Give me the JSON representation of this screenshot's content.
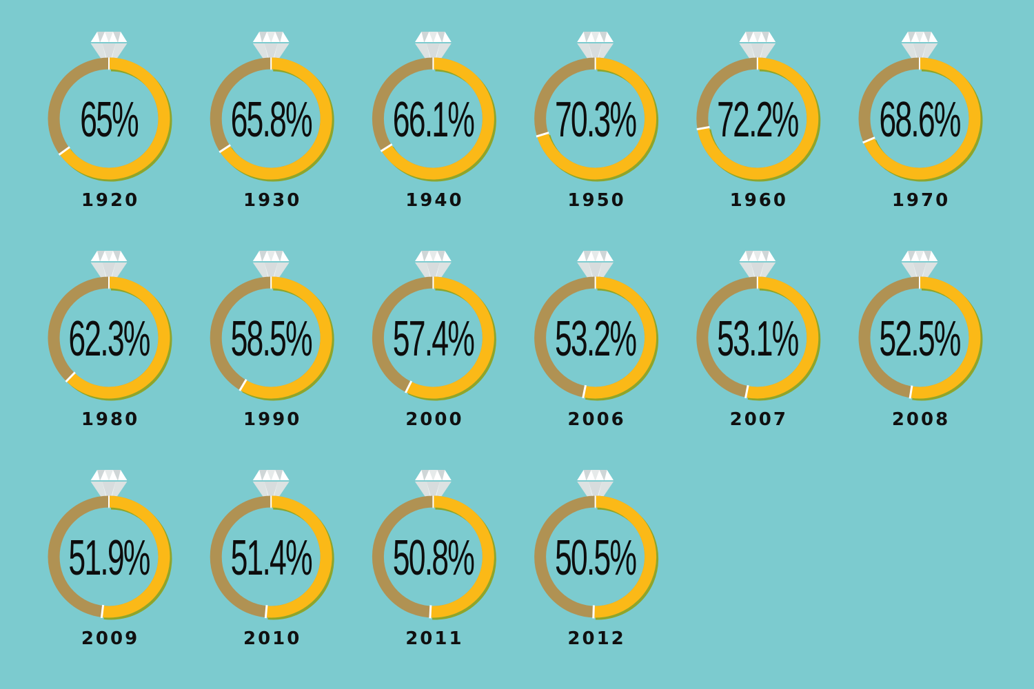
{
  "colors": {
    "background": "#7ccbcf",
    "share": "#fbb917",
    "remainder": "#b09253",
    "gap": "#ffffff",
    "shadow": "#8fa52a",
    "text": "#0d0d0d"
  },
  "icon": "diamond-icon",
  "chart_data": {
    "type": "pie",
    "style": "donut-ring",
    "categories": [
      "1920",
      "1930",
      "1940",
      "1950",
      "1960",
      "1970",
      "1980",
      "1990",
      "2000",
      "2006",
      "2007",
      "2008",
      "2009",
      "2010",
      "2011",
      "2012"
    ],
    "values": [
      65,
      65.8,
      66.1,
      70.3,
      72.2,
      68.6,
      62.3,
      58.5,
      57.4,
      53.2,
      53.1,
      52.5,
      51.9,
      51.4,
      50.8,
      50.5
    ],
    "labels": [
      "65%",
      "65.8%",
      "66.1%",
      "70.3%",
      "72.2%",
      "68.6%",
      "62.3%",
      "58.5%",
      "57.4%",
      "53.2%",
      "53.1%",
      "52.5%",
      "51.9%",
      "51.4%",
      "50.8%",
      "50.5%"
    ],
    "max": 100,
    "unit": "%"
  }
}
